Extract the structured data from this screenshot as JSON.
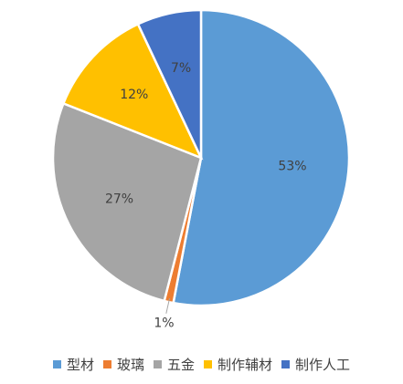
{
  "chart_data": {
    "type": "pie",
    "title": "",
    "categories": [
      "型材",
      "玻璃",
      "五金",
      "制作辅材",
      "制作人工"
    ],
    "values": [
      53,
      1,
      27,
      12,
      7
    ],
    "labels": [
      "53%",
      "1%",
      "27%",
      "12%",
      "7%"
    ],
    "colors": [
      "#5B9BD5",
      "#ED7D31",
      "#A5A5A5",
      "#FFC000",
      "#4472C4"
    ],
    "legend_position": "bottom"
  }
}
